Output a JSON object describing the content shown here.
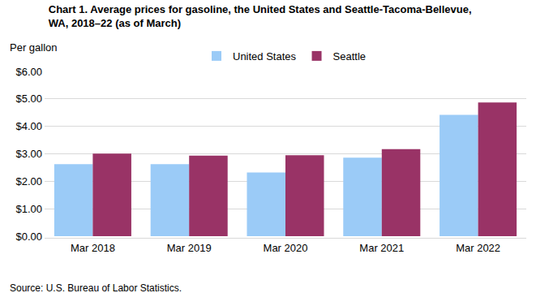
{
  "chart_data": {
    "type": "bar",
    "title": "Chart 1. Average prices for gasoline, the United States and Seattle-Tacoma-Bellevue, WA, 2018–22 (as of March)",
    "ylabel": "Per gallon",
    "source": "Source: U.S. Bureau of Labor Statistics.",
    "categories": [
      "Mar 2018",
      "Mar 2019",
      "Mar 2020",
      "Mar 2021",
      "Mar 2022"
    ],
    "series": [
      {
        "name": "United States",
        "color": "#9bcbf7",
        "values": [
          2.62,
          2.62,
          2.32,
          2.86,
          4.42
        ]
      },
      {
        "name": "Seattle",
        "color": "#993366",
        "values": [
          3.01,
          2.93,
          2.95,
          3.17,
          4.87
        ]
      }
    ],
    "ylim": [
      0,
      6
    ],
    "yticks": [
      {
        "value": 0,
        "label": "$0.00"
      },
      {
        "value": 1,
        "label": "$1.00"
      },
      {
        "value": 2,
        "label": "$2.00"
      },
      {
        "value": 3,
        "label": "$3.00"
      },
      {
        "value": 4,
        "label": "$4.00"
      },
      {
        "value": 5,
        "label": "$5.00"
      },
      {
        "value": 6,
        "label": "$6.00"
      }
    ],
    "grid": true,
    "legend": "top"
  }
}
